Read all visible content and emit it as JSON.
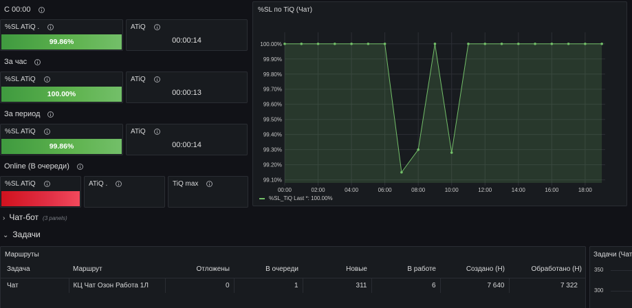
{
  "sections": {
    "since_midnight": "С 00:00",
    "last_hour": "За час",
    "period": "За период",
    "online": "Online (В очереди)"
  },
  "stats": {
    "s1": {
      "sl_label": "%SL ATiQ .",
      "sl_value": "99.86%",
      "atiq_label": "ATiQ",
      "atiq_value": "00:00:14"
    },
    "s2": {
      "sl_label": "%SL ATiQ",
      "sl_value": "100.00%",
      "atiq_label": "ATiQ",
      "atiq_value": "00:00:13"
    },
    "s3": {
      "sl_label": "%SL ATiQ",
      "sl_value": "99.86%",
      "atiq_label": "ATiQ",
      "atiq_value": "00:00:14"
    },
    "s4": {
      "sl_label": "%SL ATiQ",
      "atiq_label": "ATiQ .",
      "tiq_max_label": "TiQ max"
    }
  },
  "colors": {
    "ok": "#73bf69",
    "bad": "#f2495c",
    "series": "#73bf69"
  },
  "chart": {
    "title": "%SL по TiQ (Чат)",
    "legend_text": "%SL_TiQ  Last *: 100.00%"
  },
  "chart_data": {
    "type": "area",
    "title": "%SL по TiQ (Чат)",
    "y_ticks": [
      "100.00%",
      "99.90%",
      "99.80%",
      "99.70%",
      "99.60%",
      "99.50%",
      "99.40%",
      "99.30%",
      "99.20%",
      "99.10%"
    ],
    "x_ticks": [
      "00:00",
      "02:00",
      "04:00",
      "06:00",
      "08:00",
      "10:00",
      "12:00",
      "14:00",
      "16:00",
      "18:00"
    ],
    "ylim": [
      99.08,
      100.04
    ],
    "xlim": [
      0,
      19.2
    ],
    "series": [
      {
        "name": "%SL_TiQ",
        "x": [
          0,
          1,
          2,
          3,
          4,
          5,
          6,
          7,
          8,
          9,
          10,
          11,
          12,
          13,
          14,
          15,
          16,
          17,
          18,
          19
        ],
        "y": [
          100.0,
          100.0,
          100.0,
          100.0,
          100.0,
          100.0,
          100.0,
          99.15,
          99.3,
          100.0,
          99.28,
          100.0,
          100.0,
          100.0,
          100.0,
          100.0,
          100.0,
          100.0,
          100.0,
          100.0
        ]
      }
    ],
    "legend": "bottom-left",
    "grid": true
  },
  "rows": {
    "chatbot": {
      "label": "Чат-бот",
      "sub": "(3 panels)"
    },
    "tasks": {
      "label": "Задачи"
    }
  },
  "routes": {
    "title": "Маршруты",
    "columns": [
      "Задача",
      "Маршрут",
      "Отложены",
      "В очереди",
      "Новые",
      "В работе",
      "Создано (Н)",
      "Обработано (Н)"
    ],
    "rows": [
      [
        "Чат",
        "КЦ Чат Озон Работа 1Л",
        "0",
        "1",
        "311",
        "6",
        "7 640",
        "7 322"
      ]
    ]
  },
  "tasks_panel": {
    "title": "Задачи (Чат",
    "y_ticks": [
      "350",
      "300"
    ]
  }
}
